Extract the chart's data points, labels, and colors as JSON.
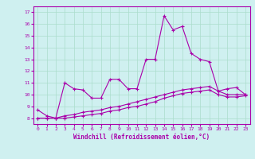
{
  "xlabel": "Windchill (Refroidissement éolien,°C)",
  "bg_color": "#cff0f0",
  "grid_color": "#aaddcc",
  "line_color": "#aa00aa",
  "x_ticks": [
    0,
    1,
    2,
    3,
    4,
    5,
    6,
    7,
    8,
    9,
    10,
    11,
    12,
    13,
    14,
    15,
    16,
    17,
    18,
    19,
    20,
    21,
    22,
    23
  ],
  "ylim": [
    7.5,
    17.5
  ],
  "xlim": [
    -0.5,
    23.5
  ],
  "yticks": [
    8,
    9,
    10,
    11,
    12,
    13,
    14,
    15,
    16,
    17
  ],
  "line1": {
    "x": [
      0,
      1,
      2,
      3,
      4,
      5,
      6,
      7,
      8,
      9,
      10,
      11,
      12,
      13,
      14,
      15,
      16,
      17,
      18,
      19,
      20,
      21,
      22,
      23
    ],
    "y": [
      8.7,
      8.2,
      8.0,
      11.0,
      10.5,
      10.4,
      9.7,
      9.7,
      11.3,
      11.3,
      10.5,
      10.5,
      13.0,
      13.0,
      16.7,
      15.5,
      15.8,
      13.5,
      13.0,
      12.8,
      10.3,
      10.5,
      10.6,
      10.0
    ]
  },
  "line2": {
    "x": [
      0,
      1,
      2,
      3,
      4,
      5,
      6,
      7,
      8,
      9,
      10,
      11,
      12,
      13,
      14,
      15,
      16,
      17,
      18,
      19,
      20,
      21,
      22,
      23
    ],
    "y": [
      8.0,
      8.0,
      8.0,
      8.2,
      8.3,
      8.5,
      8.6,
      8.7,
      8.9,
      9.0,
      9.2,
      9.4,
      9.6,
      9.8,
      10.0,
      10.2,
      10.4,
      10.5,
      10.6,
      10.7,
      10.3,
      10.0,
      10.0,
      10.0
    ]
  },
  "line3": {
    "x": [
      0,
      1,
      2,
      3,
      4,
      5,
      6,
      7,
      8,
      9,
      10,
      11,
      12,
      13,
      14,
      15,
      16,
      17,
      18,
      19,
      20,
      21,
      22,
      23
    ],
    "y": [
      8.0,
      8.0,
      8.0,
      8.0,
      8.1,
      8.2,
      8.3,
      8.4,
      8.6,
      8.7,
      8.9,
      9.0,
      9.2,
      9.4,
      9.7,
      9.9,
      10.1,
      10.2,
      10.3,
      10.4,
      10.0,
      9.8,
      9.8,
      9.9
    ]
  }
}
